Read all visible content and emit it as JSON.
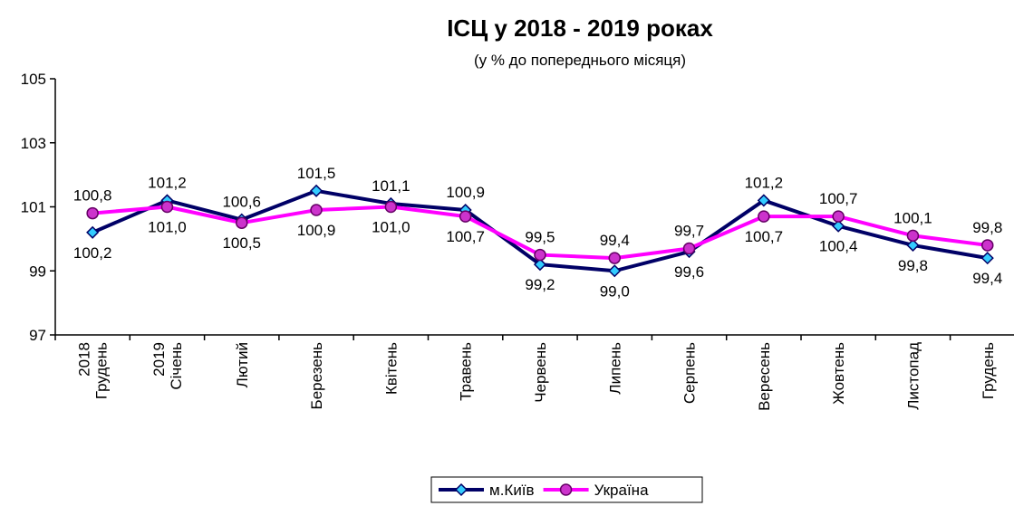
{
  "chart_data": {
    "type": "line",
    "title": "ІСЦ у 2018 - 2019 роках",
    "subtitle": "(у %  до попереднього місяця)",
    "categories": [
      "2018 Грудень",
      "2019 Січень",
      "Лютий",
      "Березень",
      "Квітень",
      "Травень",
      "Червень",
      "Липень",
      "Серпень",
      "Вересень",
      "Жовтень",
      "Листопад",
      "Грудень"
    ],
    "series": [
      {
        "name": "м.Київ",
        "color": "#000066",
        "marker": "diamond",
        "marker_color": "#33ccff",
        "values": [
          100.2,
          101.2,
          100.6,
          101.5,
          101.1,
          100.9,
          99.2,
          99.0,
          99.6,
          101.2,
          100.4,
          99.8,
          99.4
        ],
        "value_labels": [
          "100,2",
          "101,2",
          "100,6",
          "101,5",
          "101,1",
          "100,9",
          "99,2",
          "99,0",
          "99,6",
          "101,2",
          "100,4",
          "99,8",
          "99,4"
        ]
      },
      {
        "name": "Україна",
        "color": "#ff00ff",
        "marker": "circle",
        "marker_color": "#cc33cc",
        "values": [
          100.8,
          101.0,
          100.5,
          100.9,
          101.0,
          100.7,
          99.5,
          99.4,
          99.7,
          100.7,
          100.7,
          100.1,
          99.8
        ],
        "value_labels": [
          "100,8",
          "101,0",
          "100,5",
          "100,9",
          "101,0",
          "100,7",
          "99,5",
          "99,4",
          "99,7",
          "100,7",
          "100,7",
          "100,1",
          "99,8"
        ]
      }
    ],
    "ylim": [
      97,
      105
    ],
    "yticks": [
      97,
      99,
      101,
      103,
      105
    ],
    "grid": false,
    "legend": "bottom"
  }
}
